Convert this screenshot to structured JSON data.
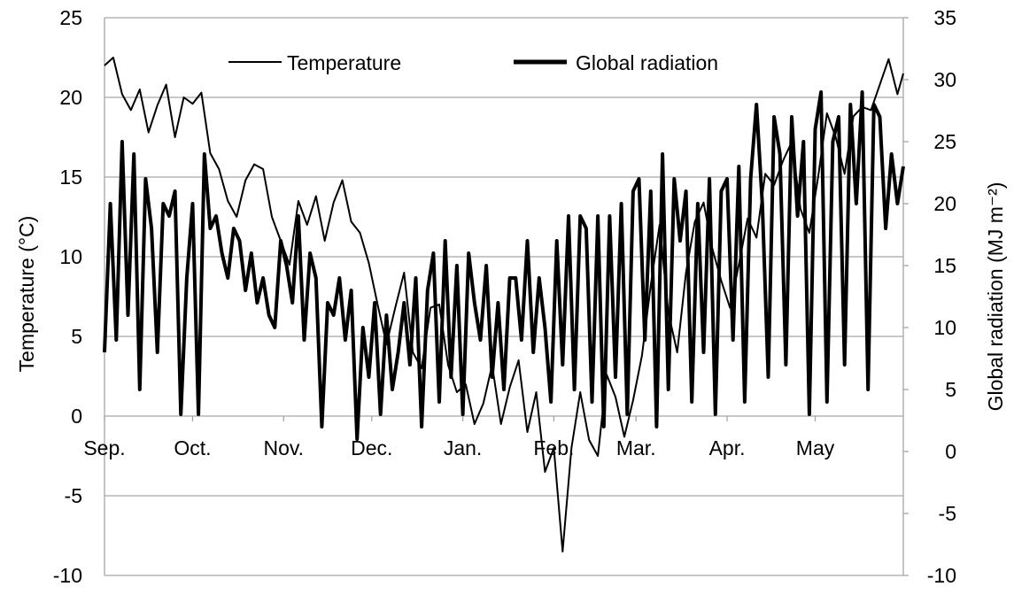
{
  "chart_data": {
    "type": "line",
    "title": "",
    "xlabel": "",
    "ylabel": "Temperature (°C)",
    "y2label": "Global radiation (MJ m⁻²)",
    "ylim": [
      -10,
      25
    ],
    "y2lim": [
      -10,
      35
    ],
    "yticks": [
      "25",
      "20",
      "15",
      "10",
      "5",
      "0",
      "-5",
      "-10"
    ],
    "y2ticks": [
      "35",
      "30",
      "25",
      "20",
      "15",
      "10",
      "5",
      "0",
      "-5",
      "-10"
    ],
    "xticks": [
      "Sep.",
      "Oct.",
      "Nov.",
      "Dec.",
      "Jan.",
      "Feb.",
      "Mar.",
      "Apr.",
      "May"
    ],
    "grid": true,
    "legend": "top-center",
    "colors": {
      "line": "#000000",
      "grid": "#a6a6a6",
      "axis": "#a6a6a6"
    },
    "series": [
      {
        "name": "Temperature",
        "axis": "left",
        "x": [
          "2020-09-01",
          "2020-09-04",
          "2020-09-07",
          "2020-09-10",
          "2020-09-13",
          "2020-09-16",
          "2020-09-19",
          "2020-09-22",
          "2020-09-25",
          "2020-09-28",
          "2020-10-01",
          "2020-10-04",
          "2020-10-07",
          "2020-10-10",
          "2020-10-13",
          "2020-10-16",
          "2020-10-19",
          "2020-10-22",
          "2020-10-25",
          "2020-10-28",
          "2020-10-31",
          "2020-11-03",
          "2020-11-06",
          "2020-11-09",
          "2020-11-12",
          "2020-11-15",
          "2020-11-18",
          "2020-11-21",
          "2020-11-24",
          "2020-11-27",
          "2020-11-30",
          "2020-12-03",
          "2020-12-06",
          "2020-12-09",
          "2020-12-12",
          "2020-12-15",
          "2020-12-18",
          "2020-12-21",
          "2020-12-24",
          "2020-12-27",
          "2020-12-30",
          "2021-01-02",
          "2021-01-05",
          "2021-01-08",
          "2021-01-11",
          "2021-01-14",
          "2021-01-17",
          "2021-01-20",
          "2021-01-23",
          "2021-01-26",
          "2021-01-29",
          "2021-02-01",
          "2021-02-04",
          "2021-02-07",
          "2021-02-10",
          "2021-02-13",
          "2021-02-16",
          "2021-02-19",
          "2021-02-22",
          "2021-02-25",
          "2021-02-28",
          "2021-03-03",
          "2021-03-06",
          "2021-03-09",
          "2021-03-12",
          "2021-03-15",
          "2021-03-18",
          "2021-03-21",
          "2021-03-24",
          "2021-03-27",
          "2021-03-30",
          "2021-04-02",
          "2021-04-05",
          "2021-04-08",
          "2021-04-11",
          "2021-04-14",
          "2021-04-17",
          "2021-04-20",
          "2021-04-23",
          "2021-04-26",
          "2021-04-29",
          "2021-05-02",
          "2021-05-05",
          "2021-05-08",
          "2021-05-11",
          "2021-05-14",
          "2021-05-17",
          "2021-05-20",
          "2021-05-23",
          "2021-05-26",
          "2021-05-29",
          "2021-05-31"
        ],
        "values": [
          22,
          22.5,
          20.2,
          19.2,
          20.5,
          17.8,
          19.5,
          20.8,
          17.5,
          20,
          19.6,
          20.3,
          16.5,
          15.5,
          13.5,
          12.5,
          14.8,
          15.8,
          15.5,
          12.5,
          11,
          9.5,
          13.5,
          12,
          13.8,
          11,
          13.4,
          14.8,
          12.2,
          11.5,
          9.6,
          7,
          4.5,
          6.8,
          9,
          4,
          3,
          6.8,
          7,
          3.2,
          1.5,
          2,
          -0.5,
          0.8,
          3.2,
          -0.5,
          1.8,
          3.5,
          -1,
          1.5,
          -3.5,
          -2,
          -8.5,
          -2,
          1.5,
          -1.5,
          -2.5,
          2.6,
          1.2,
          -1.3,
          1,
          3.8,
          8.2,
          12,
          6.5,
          4,
          9,
          12.2,
          13.4,
          10.5,
          8.5,
          6.8,
          9.5,
          12.4,
          11.2,
          15.2,
          14.5,
          16,
          17.2,
          13,
          11.5,
          15,
          19,
          17.5,
          15.2,
          18.8,
          19.4,
          19.2,
          20.8,
          22.4,
          20.2,
          21.5
        ]
      },
      {
        "name": "Global radiation",
        "axis": "right",
        "x": [
          "2020-09-01",
          "2020-09-03",
          "2020-09-05",
          "2020-09-07",
          "2020-09-09",
          "2020-09-11",
          "2020-09-13",
          "2020-09-15",
          "2020-09-17",
          "2020-09-19",
          "2020-09-21",
          "2020-09-23",
          "2020-09-25",
          "2020-09-27",
          "2020-09-29",
          "2020-10-01",
          "2020-10-03",
          "2020-10-05",
          "2020-10-07",
          "2020-10-09",
          "2020-10-11",
          "2020-10-13",
          "2020-10-15",
          "2020-10-17",
          "2020-10-19",
          "2020-10-21",
          "2020-10-23",
          "2020-10-25",
          "2020-10-27",
          "2020-10-29",
          "2020-10-31",
          "2020-11-02",
          "2020-11-04",
          "2020-11-06",
          "2020-11-08",
          "2020-11-10",
          "2020-11-12",
          "2020-11-14",
          "2020-11-16",
          "2020-11-18",
          "2020-11-20",
          "2020-11-22",
          "2020-11-24",
          "2020-11-26",
          "2020-11-28",
          "2020-11-30",
          "2020-12-02",
          "2020-12-04",
          "2020-12-06",
          "2020-12-08",
          "2020-12-10",
          "2020-12-12",
          "2020-12-14",
          "2020-12-16",
          "2020-12-18",
          "2020-12-20",
          "2020-12-22",
          "2020-12-24",
          "2020-12-26",
          "2020-12-28",
          "2020-12-30",
          "2021-01-01",
          "2021-01-03",
          "2021-01-05",
          "2021-01-07",
          "2021-01-09",
          "2021-01-11",
          "2021-01-13",
          "2021-01-15",
          "2021-01-17",
          "2021-01-19",
          "2021-01-21",
          "2021-01-23",
          "2021-01-25",
          "2021-01-27",
          "2021-01-29",
          "2021-01-31",
          "2021-02-02",
          "2021-02-04",
          "2021-02-06",
          "2021-02-08",
          "2021-02-10",
          "2021-02-12",
          "2021-02-14",
          "2021-02-16",
          "2021-02-18",
          "2021-02-20",
          "2021-02-22",
          "2021-02-24",
          "2021-02-26",
          "2021-02-28",
          "2021-03-02",
          "2021-03-04",
          "2021-03-06",
          "2021-03-08",
          "2021-03-10",
          "2021-03-12",
          "2021-03-14",
          "2021-03-16",
          "2021-03-18",
          "2021-03-20",
          "2021-03-22",
          "2021-03-24",
          "2021-03-26",
          "2021-03-28",
          "2021-03-30",
          "2021-04-01",
          "2021-04-03",
          "2021-04-05",
          "2021-04-07",
          "2021-04-09",
          "2021-04-11",
          "2021-04-13",
          "2021-04-15",
          "2021-04-17",
          "2021-04-19",
          "2021-04-21",
          "2021-04-23",
          "2021-04-25",
          "2021-04-27",
          "2021-04-29",
          "2021-05-01",
          "2021-05-03",
          "2021-05-05",
          "2021-05-07",
          "2021-05-09",
          "2021-05-11",
          "2021-05-13",
          "2021-05-15",
          "2021-05-17",
          "2021-05-19",
          "2021-05-21",
          "2021-05-23",
          "2021-05-25",
          "2021-05-27",
          "2021-05-29",
          "2021-05-31"
        ],
        "values": [
          8,
          20,
          9,
          25,
          11,
          24,
          5,
          22,
          18,
          8,
          20,
          19,
          21,
          3,
          14,
          20,
          3,
          24,
          18,
          19,
          16,
          14,
          18,
          17,
          13,
          16,
          12,
          14,
          11,
          10,
          17,
          15,
          12,
          19,
          9,
          16,
          14,
          2,
          12,
          11,
          14,
          9,
          13,
          1,
          10,
          6,
          12,
          3,
          11,
          5,
          8,
          12,
          7,
          14,
          2,
          13,
          16,
          4,
          17,
          6,
          15,
          3,
          16,
          12,
          9,
          15,
          6,
          12,
          5,
          14,
          14,
          9,
          17,
          8,
          14,
          10,
          4,
          17,
          7,
          19,
          5,
          19,
          18,
          4,
          19,
          2,
          19,
          6,
          20,
          3,
          21,
          22,
          9,
          21,
          2,
          24,
          5,
          22,
          17,
          21,
          4,
          20,
          8,
          22,
          3,
          21,
          22,
          9,
          23,
          4,
          22,
          28,
          20,
          6,
          27,
          24,
          7,
          27,
          19,
          25,
          3,
          26,
          29,
          4,
          25,
          27,
          7,
          28,
          20,
          29,
          5,
          28,
          27,
          18,
          24,
          20,
          23
        ]
      }
    ]
  },
  "legend": {
    "temperature_label": "Temperature",
    "radiation_label": "Global radiation"
  }
}
